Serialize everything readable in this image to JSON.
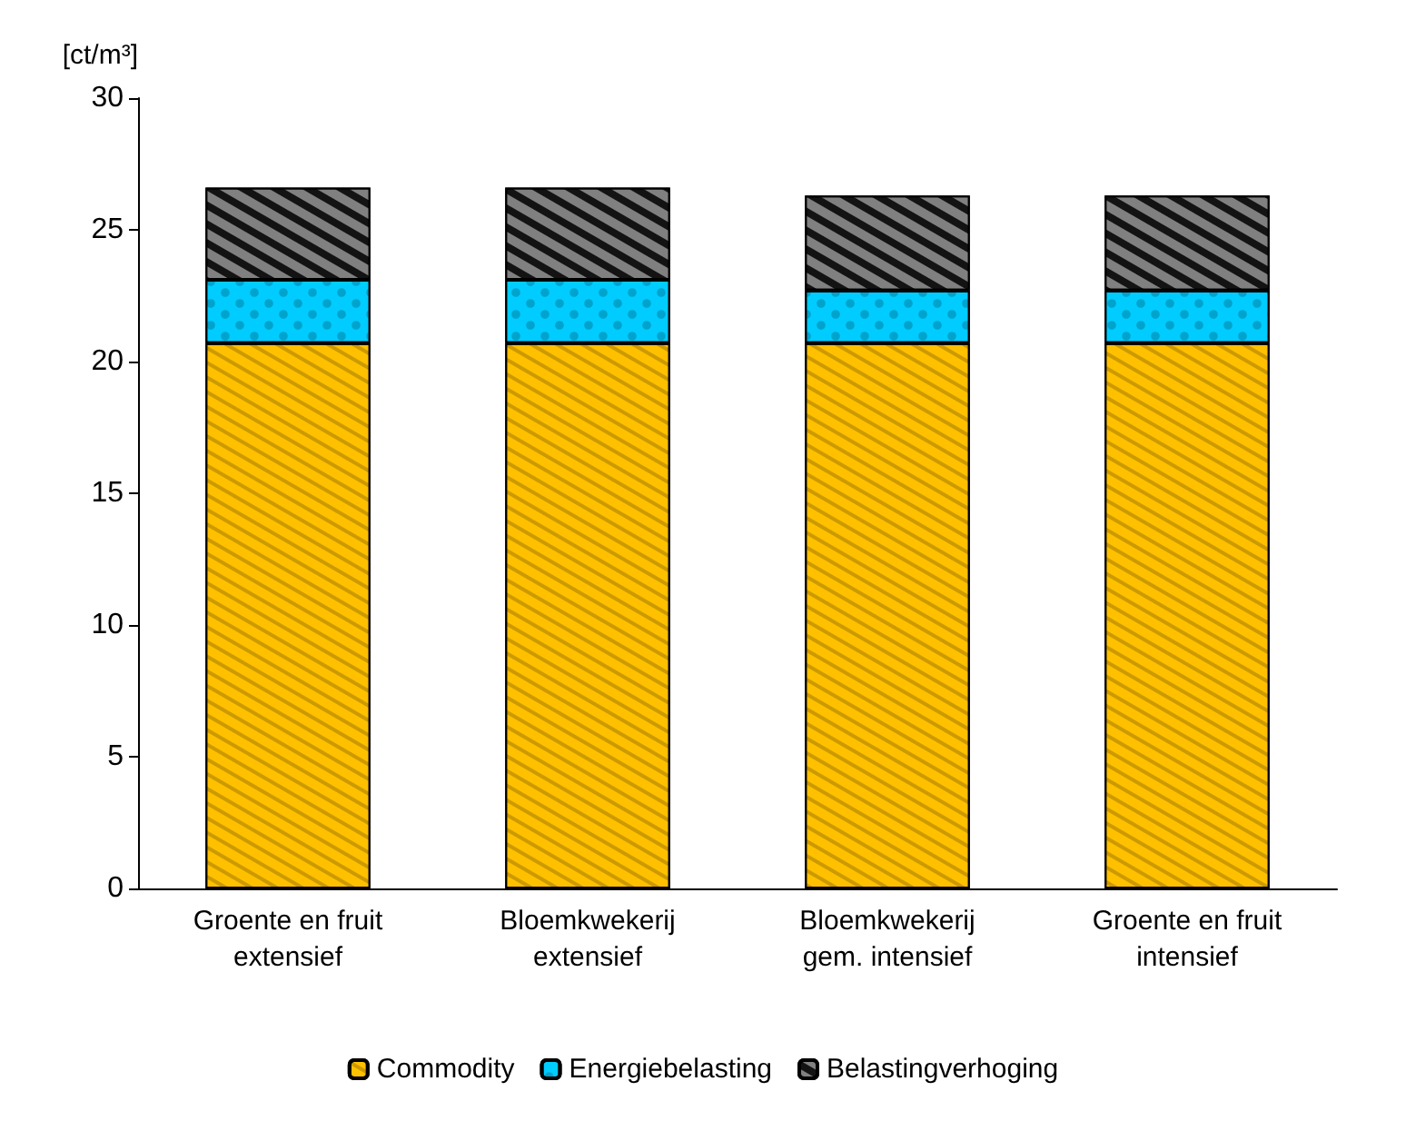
{
  "chart_data": {
    "type": "bar",
    "stacked": true,
    "ylabel": "[ct/m³]",
    "categories": [
      "Groente en fruit\nextensief",
      "Bloemkwekerij\nextensief",
      "Bloemkwekerij\ngem. intensief",
      "Groente en fruit\nintensief"
    ],
    "series": [
      {
        "name": "Commodity",
        "color": "#ffc000",
        "values": [
          20.7,
          20.7,
          20.7,
          20.7
        ]
      },
      {
        "name": "Energiebelasting",
        "color": "#00ccff",
        "values": [
          2.4,
          2.4,
          2.0,
          2.0
        ]
      },
      {
        "name": "Belastingverhoging",
        "color": "#808080",
        "values": [
          3.5,
          3.5,
          3.6,
          3.6
        ]
      }
    ],
    "ylim": [
      0,
      30
    ],
    "yticks": [
      0,
      5,
      10,
      15,
      20,
      25,
      30
    ],
    "grid": false,
    "legend": "bottom"
  }
}
